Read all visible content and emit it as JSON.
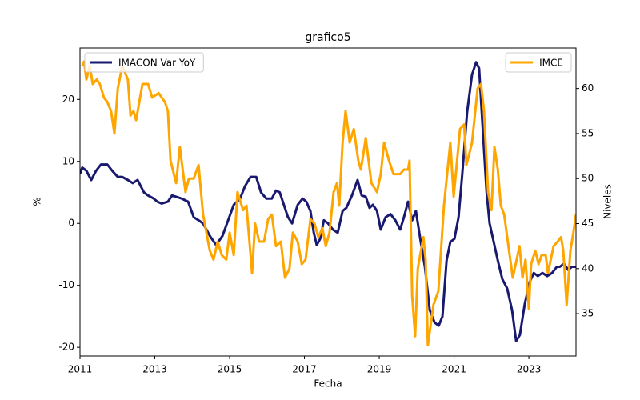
{
  "chart_data": {
    "type": "line",
    "title": "grafico5",
    "xlabel": "Fecha",
    "ylabel": "%",
    "y2label": "Niveles",
    "xlim": [
      2011,
      2024.26
    ],
    "xticks": [
      2011,
      2013,
      2015,
      2017,
      2019,
      2021,
      2023
    ],
    "ylim": [
      -21.4,
      28.3
    ],
    "yticks": [
      -20,
      -10,
      0,
      10,
      20
    ],
    "y2lim": [
      30.3,
      64.5
    ],
    "y2ticks": [
      35,
      40,
      45,
      50,
      55,
      60
    ],
    "grid": false,
    "series": [
      {
        "name": "IMACON Var YoY",
        "color": "#191970",
        "legend": "upper left",
        "x": [
          2011.0,
          2011.06,
          2011.17,
          2011.3,
          2011.43,
          2011.56,
          2011.73,
          2011.86,
          2012.01,
          2012.13,
          2012.28,
          2012.41,
          2012.54,
          2012.71,
          2012.82,
          2012.97,
          2013.07,
          2013.18,
          2013.35,
          2013.46,
          2013.57,
          2013.72,
          2013.89,
          2014.04,
          2014.17,
          2014.29,
          2014.47,
          2014.64,
          2014.81,
          2014.96,
          2015.11,
          2015.28,
          2015.41,
          2015.56,
          2015.71,
          2015.84,
          2015.98,
          2016.13,
          2016.24,
          2016.34,
          2016.45,
          2016.56,
          2016.67,
          2016.82,
          2016.95,
          2017.05,
          2017.16,
          2017.25,
          2017.33,
          2017.42,
          2017.52,
          2017.63,
          2017.76,
          2017.89,
          2018.02,
          2018.12,
          2018.27,
          2018.42,
          2018.53,
          2018.64,
          2018.74,
          2018.83,
          2018.94,
          2019.04,
          2019.17,
          2019.3,
          2019.43,
          2019.56,
          2019.66,
          2019.77,
          2019.88,
          2019.98,
          2020.11,
          2020.22,
          2020.35,
          2020.48,
          2020.59,
          2020.69,
          2020.8,
          2020.9,
          2021.01,
          2021.12,
          2021.22,
          2021.35,
          2021.48,
          2021.59,
          2021.67,
          2021.78,
          2021.87,
          2021.95,
          2022.06,
          2022.17,
          2022.29,
          2022.42,
          2022.55,
          2022.66,
          2022.76,
          2022.89,
          2023.02,
          2023.13,
          2023.24,
          2023.36,
          2023.49,
          2023.62,
          2023.75,
          2023.83,
          2023.94,
          2024.05,
          2024.15,
          2024.26
        ],
        "values": [
          8,
          9,
          8.5,
          7,
          8.5,
          9.5,
          9.5,
          8.5,
          7.5,
          7.5,
          7,
          6.5,
          7,
          5,
          4.5,
          4,
          3.5,
          3.2,
          3.5,
          4.5,
          4.3,
          4,
          3.5,
          1,
          0.5,
          0,
          -2,
          -3.5,
          -2,
          0.5,
          3,
          4,
          6,
          7.5,
          7.5,
          5,
          4,
          4,
          5.3,
          5,
          3,
          1,
          0,
          3,
          4,
          3.5,
          2,
          -1.5,
          -3.5,
          -2.5,
          0.5,
          0,
          -1,
          -1.5,
          2,
          2.5,
          4.5,
          7,
          4.5,
          4.3,
          2.5,
          3,
          2,
          -1,
          1,
          1.5,
          0.5,
          -1,
          1,
          3.5,
          0.5,
          2,
          -3,
          -7,
          -14,
          -16,
          -16.5,
          -15,
          -6,
          -3,
          -2.5,
          1,
          8,
          18,
          24,
          26,
          25,
          14,
          5,
          0,
          -3,
          -6,
          -9,
          -10.5,
          -14,
          -19,
          -18,
          -13,
          -9.5,
          -8,
          -8.5,
          -8,
          -8.5,
          -8,
          -7,
          -7,
          -6.5,
          -7.5,
          -7,
          -7
        ]
      },
      {
        "name": "IMCE",
        "color": "#ffa500",
        "axis": "y2",
        "legend": "upper right",
        "x": [
          2011.06,
          2011.11,
          2011.17,
          2011.26,
          2011.34,
          2011.45,
          2011.53,
          2011.64,
          2011.73,
          2011.83,
          2011.92,
          2012.01,
          2012.13,
          2012.28,
          2012.35,
          2012.43,
          2012.5,
          2012.67,
          2012.82,
          2012.93,
          2013.1,
          2013.27,
          2013.35,
          2013.42,
          2013.57,
          2013.67,
          2013.82,
          2013.91,
          2014.04,
          2014.17,
          2014.29,
          2014.47,
          2014.57,
          2014.68,
          2014.79,
          2014.91,
          2015.0,
          2015.11,
          2015.21,
          2015.36,
          2015.45,
          2015.6,
          2015.68,
          2015.79,
          2015.92,
          2016.03,
          2016.13,
          2016.24,
          2016.37,
          2016.48,
          2016.6,
          2016.69,
          2016.82,
          2016.93,
          2017.03,
          2017.16,
          2017.27,
          2017.37,
          2017.48,
          2017.57,
          2017.67,
          2017.78,
          2017.87,
          2017.93,
          2018.02,
          2018.1,
          2018.21,
          2018.32,
          2018.44,
          2018.51,
          2018.64,
          2018.79,
          2018.94,
          2019.04,
          2019.13,
          2019.26,
          2019.38,
          2019.56,
          2019.66,
          2019.77,
          2019.81,
          2019.88,
          2019.96,
          2020.03,
          2020.18,
          2020.24,
          2020.3,
          2020.45,
          2020.58,
          2020.73,
          2020.9,
          2020.99,
          2021.16,
          2021.27,
          2021.33,
          2021.48,
          2021.63,
          2021.72,
          2021.8,
          2021.91,
          2022.0,
          2022.08,
          2022.17,
          2022.25,
          2022.34,
          2022.47,
          2022.57,
          2022.75,
          2022.83,
          2022.91,
          2023.0,
          2023.06,
          2023.17,
          2023.26,
          2023.34,
          2023.45,
          2023.51,
          2023.66,
          2023.77,
          2023.86,
          2023.92,
          2024.01,
          2024.11,
          2024.19,
          2024.26
        ],
        "values": [
          62.5,
          63,
          61,
          62.5,
          60.5,
          61,
          60.5,
          59,
          58.5,
          57.5,
          55,
          60,
          62.5,
          61,
          57,
          57.5,
          56.5,
          60.5,
          60.5,
          59,
          59.5,
          58.5,
          57.5,
          52,
          49.5,
          53.5,
          48.5,
          50,
          50,
          51.5,
          46,
          42,
          41,
          43,
          41.5,
          41,
          44,
          41.5,
          48.5,
          46.5,
          47,
          39.5,
          45,
          43,
          43,
          45.5,
          46,
          42.5,
          43,
          39,
          40,
          44,
          43,
          40.5,
          41,
          45.5,
          45,
          43.5,
          44.5,
          42.5,
          44,
          48.5,
          49.5,
          47,
          54,
          57.5,
          54,
          55.5,
          52,
          51,
          54.5,
          49.5,
          48.5,
          50.5,
          54,
          52,
          50.5,
          50.5,
          51,
          51,
          52,
          37,
          32.5,
          40,
          43.5,
          41,
          31.5,
          36,
          37.5,
          47,
          54,
          48,
          55.5,
          56,
          51.5,
          54,
          60,
          60.5,
          57.5,
          48.5,
          46.5,
          53.5,
          51,
          47,
          46,
          42,
          39,
          42.5,
          39,
          41,
          35.5,
          40.5,
          42,
          40.5,
          41.5,
          41.5,
          39.5,
          42.5,
          43,
          43.5,
          42,
          36,
          42,
          44,
          46
        ]
      }
    ]
  }
}
